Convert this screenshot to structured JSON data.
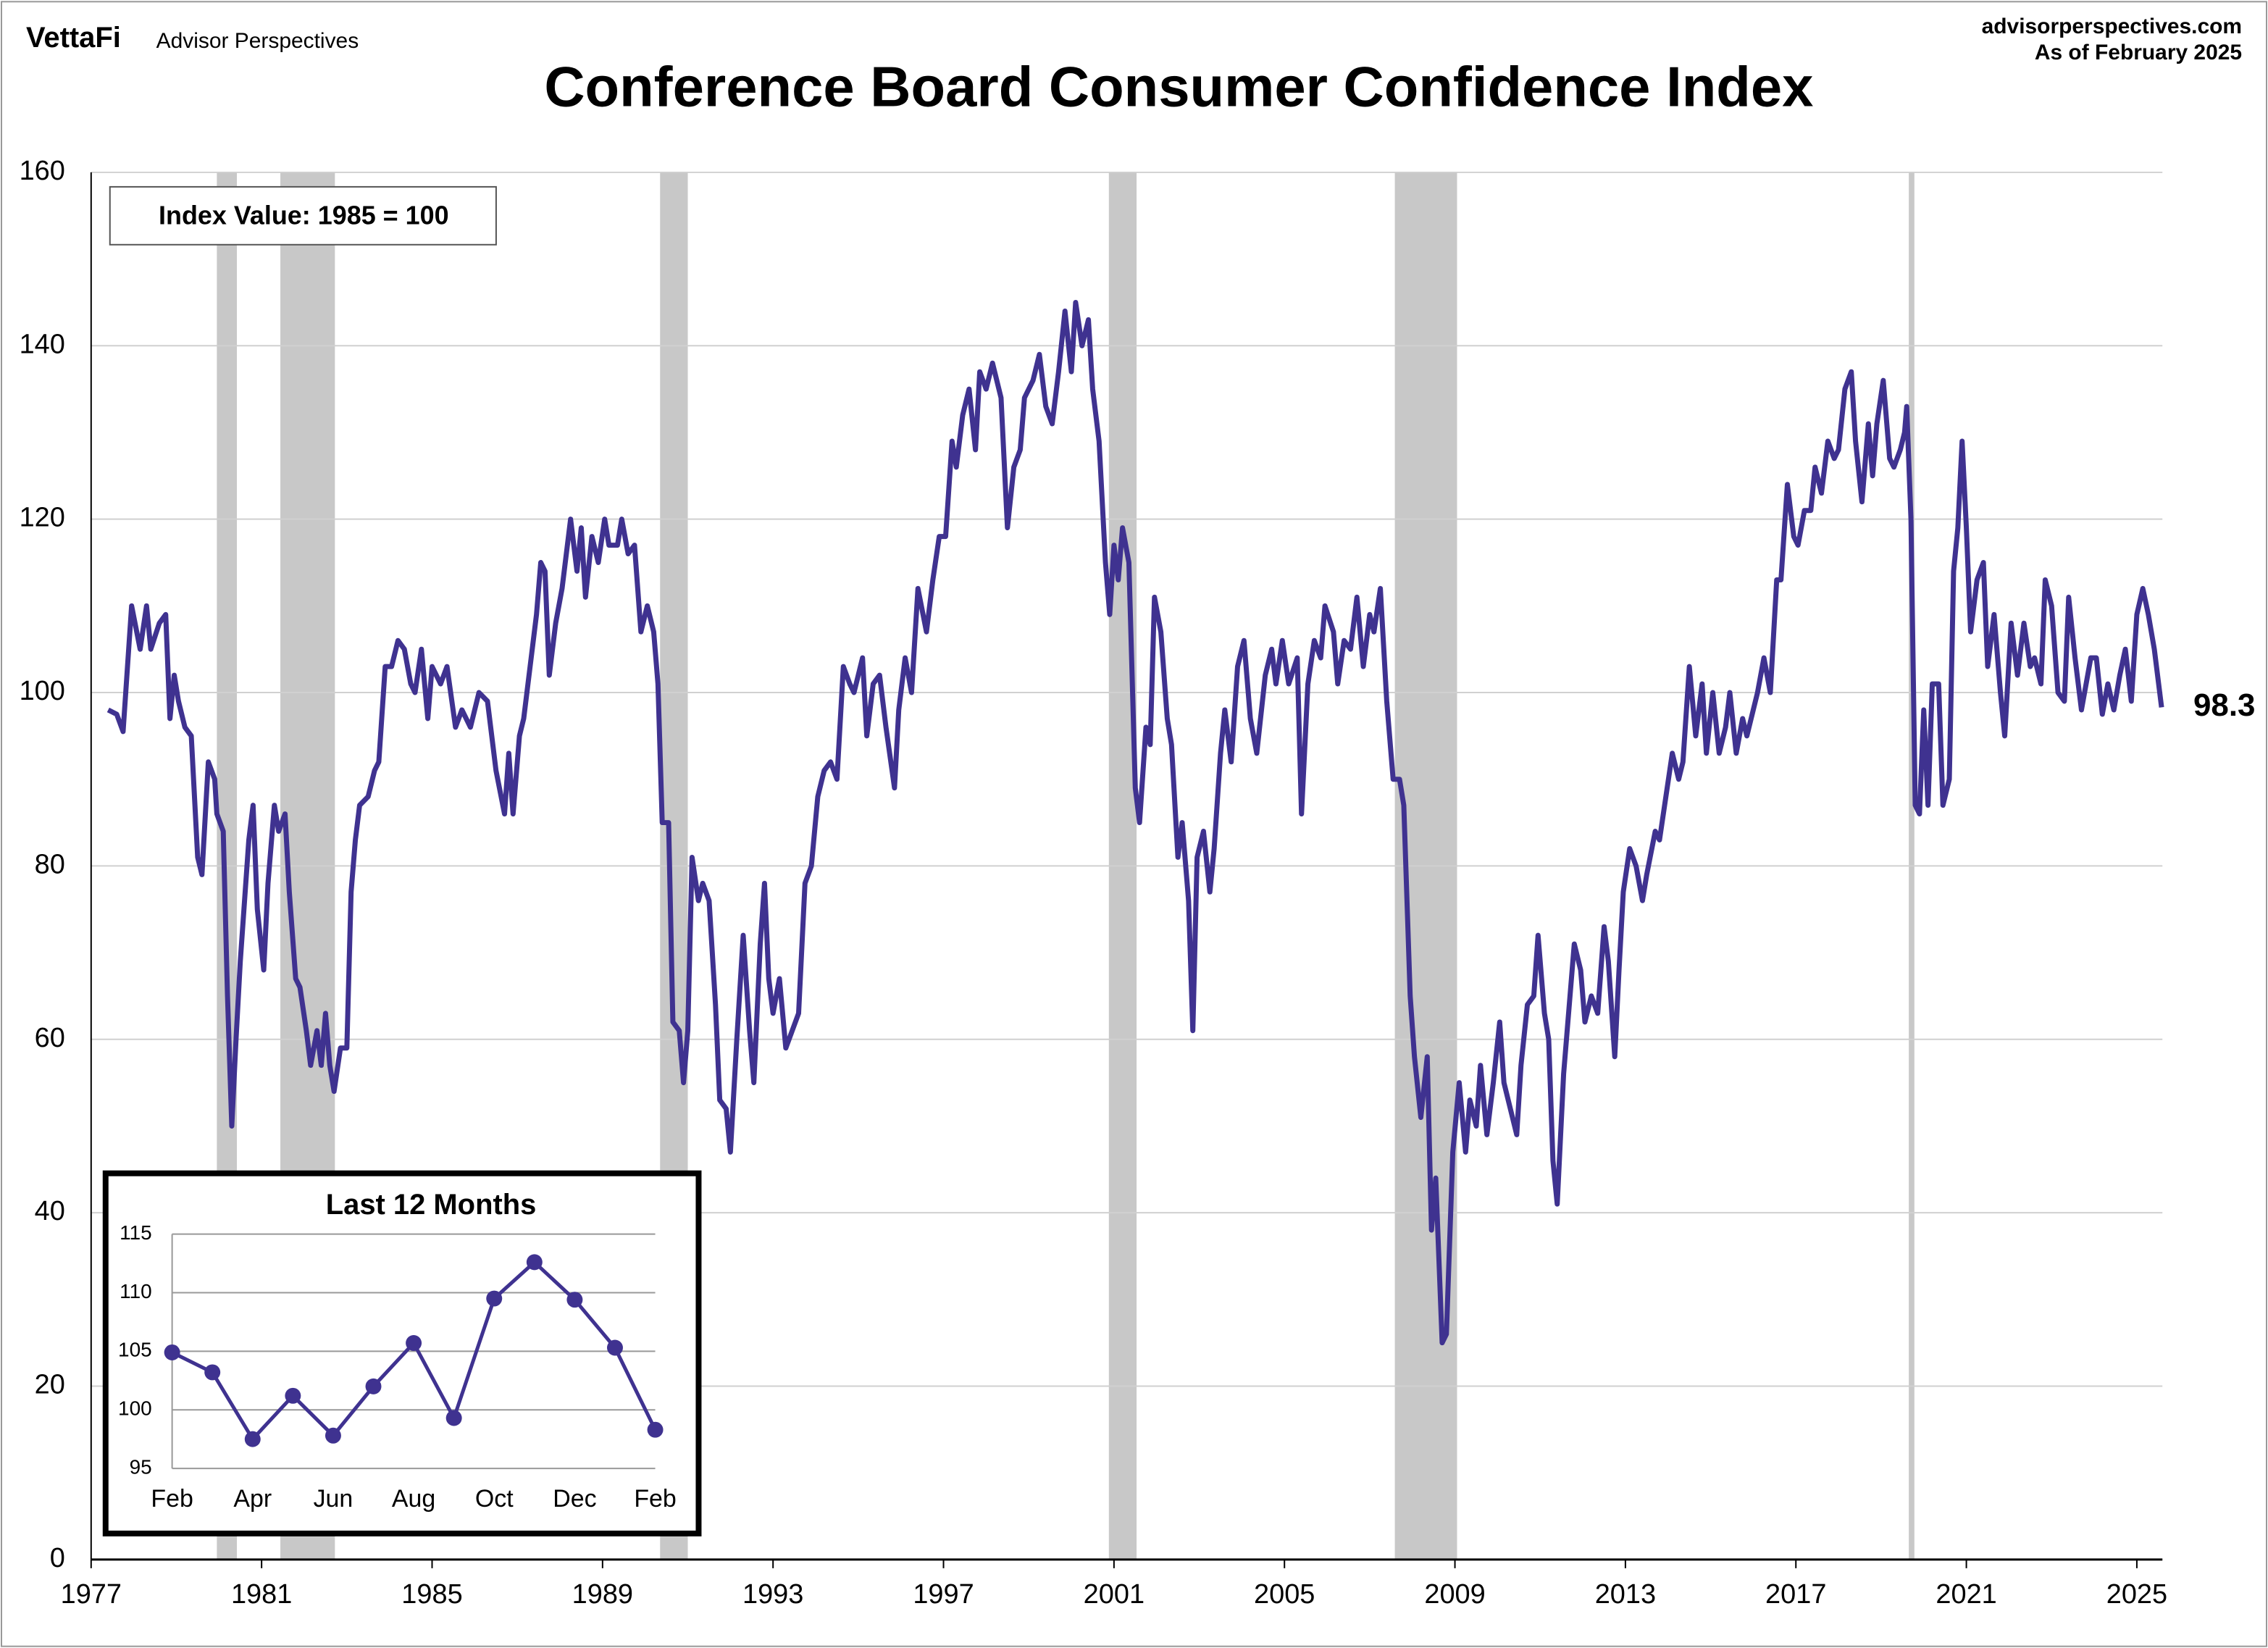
{
  "header": {
    "brand": "VettaFi",
    "publisher": "Advisor Perspectives",
    "site": "advisorperspectives.com",
    "date": "As of February 2025"
  },
  "chart_data": [
    {
      "type": "line",
      "title": "Conference Board Consumer Confidence Index",
      "annotation": "Index Value: 1985 = 100",
      "color": "#3f3290",
      "grid": true,
      "recession_color": "#c8c8c8",
      "recessions": [
        [
          1979.95,
          1980.42
        ],
        [
          1981.44,
          1982.72
        ],
        [
          1990.35,
          1991.0
        ],
        [
          2000.88,
          2001.53
        ],
        [
          2007.59,
          2009.05
        ],
        [
          2019.65,
          2019.78
        ]
      ],
      "xlim": [
        1977,
        2025.6
      ],
      "xticks": [
        1977,
        1981,
        1985,
        1989,
        1993,
        1997,
        2001,
        2005,
        2009,
        2013,
        2017,
        2021,
        2025
      ],
      "ylim": [
        0,
        160
      ],
      "yticks": [
        0,
        20,
        40,
        60,
        80,
        100,
        120,
        140,
        160
      ],
      "x": [
        1977.4,
        1977.6,
        1977.75,
        1977.95,
        1978.15,
        1978.3,
        1978.4,
        1978.6,
        1978.75,
        1978.85,
        1978.95,
        1979.05,
        1979.2,
        1979.35,
        1979.5,
        1979.6,
        1979.75,
        1979.9,
        1979.95,
        1980.1,
        1980.2,
        1980.3,
        1980.4,
        1980.5,
        1980.7,
        1980.8,
        1980.9,
        1981.05,
        1981.15,
        1981.3,
        1981.4,
        1981.55,
        1981.65,
        1981.8,
        1981.9,
        1982.05,
        1982.15,
        1982.3,
        1982.4,
        1982.5,
        1982.6,
        1982.7,
        1982.85,
        1983.0,
        1983.1,
        1983.2,
        1983.3,
        1983.5,
        1983.65,
        1983.75,
        1983.9,
        1984.05,
        1984.2,
        1984.35,
        1984.5,
        1984.6,
        1984.75,
        1984.9,
        1985.0,
        1985.2,
        1985.35,
        1985.55,
        1985.7,
        1985.9,
        1986.1,
        1986.3,
        1986.5,
        1986.7,
        1986.8,
        1986.9,
        1987.05,
        1987.15,
        1987.3,
        1987.45,
        1987.55,
        1987.65,
        1987.75,
        1987.9,
        1988.05,
        1988.25,
        1988.4,
        1988.5,
        1988.6,
        1988.75,
        1988.9,
        1989.05,
        1989.15,
        1989.35,
        1989.45,
        1989.6,
        1989.75,
        1989.9,
        1990.05,
        1990.2,
        1990.3,
        1990.4,
        1990.55,
        1990.65,
        1990.8,
        1990.9,
        1991.0,
        1991.1,
        1991.25,
        1991.35,
        1991.5,
        1991.65,
        1991.75,
        1991.9,
        1992.0,
        1992.15,
        1992.3,
        1992.45,
        1992.55,
        1992.7,
        1992.8,
        1992.9,
        1993.0,
        1993.15,
        1993.3,
        1993.45,
        1993.6,
        1993.75,
        1993.9,
        1994.05,
        1994.2,
        1994.35,
        1994.5,
        1994.65,
        1994.8,
        1994.9,
        1995.1,
        1995.2,
        1995.35,
        1995.5,
        1995.65,
        1995.85,
        1995.95,
        1996.1,
        1996.25,
        1996.4,
        1996.6,
        1996.75,
        1996.9,
        1997.05,
        1997.2,
        1997.3,
        1997.45,
        1997.6,
        1997.75,
        1997.85,
        1998.0,
        1998.15,
        1998.35,
        1998.5,
        1998.65,
        1998.8,
        1998.9,
        1999.1,
        1999.25,
        1999.4,
        1999.55,
        1999.7,
        1999.85,
        2000.0,
        2000.1,
        2000.25,
        2000.4,
        2000.5,
        2000.65,
        2000.8,
        2000.9,
        2001.0,
        2001.1,
        2001.2,
        2001.35,
        2001.5,
        2001.6,
        2001.75,
        2001.85,
        2001.95,
        2002.1,
        2002.25,
        2002.35,
        2002.5,
        2002.6,
        2002.75,
        2002.85,
        2002.95,
        2003.1,
        2003.25,
        2003.35,
        2003.5,
        2003.6,
        2003.75,
        2003.9,
        2004.05,
        2004.2,
        2004.35,
        2004.55,
        2004.7,
        2004.8,
        2004.95,
        2005.1,
        2005.3,
        2005.4,
        2005.55,
        2005.7,
        2005.85,
        2005.95,
        2006.15,
        2006.25,
        2006.4,
        2006.55,
        2006.7,
        2006.85,
        2007.0,
        2007.1,
        2007.25,
        2007.4,
        2007.55,
        2007.7,
        2007.8,
        2007.95,
        2008.05,
        2008.2,
        2008.35,
        2008.45,
        2008.55,
        2008.7,
        2008.8,
        2008.95,
        2009.1,
        2009.25,
        2009.35,
        2009.5,
        2009.6,
        2009.75,
        2009.9,
        2010.05,
        2010.15,
        2010.3,
        2010.45,
        2010.55,
        2010.7,
        2010.85,
        2010.95,
        2011.1,
        2011.2,
        2011.3,
        2011.4,
        2011.55,
        2011.7,
        2011.8,
        2011.95,
        2012.05,
        2012.2,
        2012.35,
        2012.5,
        2012.6,
        2012.75,
        2012.85,
        2012.95,
        2013.1,
        2013.25,
        2013.4,
        2013.5,
        2013.7,
        2013.8,
        2013.95,
        2014.1,
        2014.25,
        2014.35,
        2014.5,
        2014.65,
        2014.8,
        2014.9,
        2015.05,
        2015.2,
        2015.35,
        2015.45,
        2015.6,
        2015.75,
        2015.85,
        2016.0,
        2016.1,
        2016.25,
        2016.4,
        2016.55,
        2016.65,
        2016.8,
        2016.95,
        2017.05,
        2017.2,
        2017.35,
        2017.45,
        2017.6,
        2017.75,
        2017.9,
        2018.0,
        2018.15,
        2018.3,
        2018.4,
        2018.55,
        2018.7,
        2018.8,
        2018.9,
        2019.05,
        2019.2,
        2019.3,
        2019.45,
        2019.55,
        2019.6,
        2019.7,
        2019.8,
        2019.9,
        2020.0,
        2020.1,
        2020.2,
        2020.35,
        2020.45,
        2020.6,
        2020.7,
        2020.8,
        2020.9,
        2021.0,
        2021.1,
        2021.25,
        2021.4,
        2021.5,
        2021.65,
        2021.8,
        2021.9,
        2022.05,
        2022.2,
        2022.35,
        2022.5,
        2022.6,
        2022.75,
        2022.85,
        2023.0,
        2023.15,
        2023.3,
        2023.4,
        2023.55,
        2023.7,
        2023.92,
        2024.05,
        2024.19,
        2024.32,
        2024.46,
        2024.6,
        2024.73,
        2024.87,
        2025.0,
        2025.14,
        2025.27,
        2025.41,
        2025.58
      ],
      "values": [
        98,
        97.5,
        95.5,
        110,
        105,
        110,
        105,
        108,
        109,
        97,
        102,
        99,
        96,
        95,
        81,
        79,
        92,
        90,
        86,
        84,
        65,
        50,
        60,
        69,
        83,
        87,
        75,
        68,
        78,
        87,
        84,
        86,
        77,
        67,
        66,
        61,
        57,
        61,
        57,
        63,
        57,
        54,
        59,
        59,
        77,
        83,
        87,
        88,
        91,
        92,
        103,
        103,
        106,
        105,
        101,
        100,
        105,
        97,
        103,
        101,
        103,
        96,
        98,
        96,
        100,
        99,
        91,
        86,
        93,
        86,
        95,
        97,
        103,
        109,
        115,
        114,
        102,
        108,
        112,
        120,
        114,
        119,
        111,
        118,
        115,
        120,
        117,
        117,
        120,
        116,
        117,
        107,
        110,
        107,
        101,
        85,
        85,
        62,
        61,
        55,
        61,
        81,
        76,
        78,
        76,
        64,
        53,
        52,
        47,
        60,
        72,
        61,
        55,
        71,
        78,
        67,
        63,
        67,
        59,
        61,
        63,
        78,
        80,
        88,
        91,
        92,
        90,
        103,
        101,
        100,
        104,
        95,
        101,
        102,
        96,
        89,
        98,
        104,
        100,
        112,
        107,
        113,
        118,
        118,
        129,
        126,
        132,
        135,
        128,
        137,
        135,
        138,
        134,
        119,
        126,
        128,
        134,
        136,
        139,
        133,
        131,
        137,
        144,
        137,
        145,
        140,
        143,
        135,
        129,
        115,
        109,
        117,
        113,
        119,
        115,
        89,
        85,
        96,
        94,
        111,
        107,
        97,
        94,
        81,
        85,
        76,
        61,
        81,
        84,
        77,
        82,
        93,
        98,
        92,
        103,
        106,
        97,
        93,
        102,
        105,
        101,
        106,
        101,
        104,
        86,
        101,
        106,
        104,
        110,
        107,
        101,
        106,
        105,
        111,
        103,
        109,
        107,
        112,
        99,
        90,
        90,
        87,
        65,
        58,
        51,
        58,
        38,
        44,
        25,
        26,
        47,
        55,
        47,
        53,
        50,
        57,
        49,
        55,
        62,
        55,
        52,
        49,
        57,
        64,
        65,
        72,
        63,
        60,
        46,
        41,
        56,
        65,
        71,
        68,
        62,
        65,
        63,
        73,
        69,
        58,
        68,
        77,
        82,
        80,
        76,
        79,
        84,
        83,
        88,
        93,
        90,
        92,
        103,
        95,
        101,
        93,
        100,
        93,
        96,
        100,
        93,
        97,
        95,
        98,
        100,
        104,
        100,
        113,
        113,
        124,
        118,
        117,
        121,
        121,
        126,
        123,
        129,
        127,
        128,
        135,
        137,
        129,
        122,
        131,
        125,
        131,
        136,
        127,
        126,
        128,
        130,
        133,
        120,
        87,
        86,
        98,
        87,
        101,
        101,
        87,
        90,
        114,
        119,
        129,
        119,
        107,
        113,
        115,
        103,
        109,
        100,
        95,
        108,
        102,
        108,
        103,
        104,
        101,
        113,
        110,
        100,
        99,
        111,
        104,
        98,
        104,
        104,
        97.5,
        101,
        98,
        102,
        105,
        99,
        109,
        112,
        109,
        105,
        98.3
      ]
    },
    {
      "type": "line",
      "title": "Last 12 Months",
      "color": "#3f3290",
      "grid": true,
      "categories": [
        "Feb",
        null,
        "Apr",
        null,
        "Jun",
        null,
        "Aug",
        null,
        "Oct",
        null,
        "Dec",
        null,
        "Feb"
      ],
      "values": [
        104.9,
        103.2,
        97.5,
        101.2,
        97.8,
        102,
        105.7,
        99.3,
        109.5,
        112.6,
        109.4,
        105.3,
        98.3
      ],
      "ylim": [
        95,
        115
      ],
      "yticks": [
        95,
        100,
        105,
        110,
        115
      ]
    }
  ]
}
